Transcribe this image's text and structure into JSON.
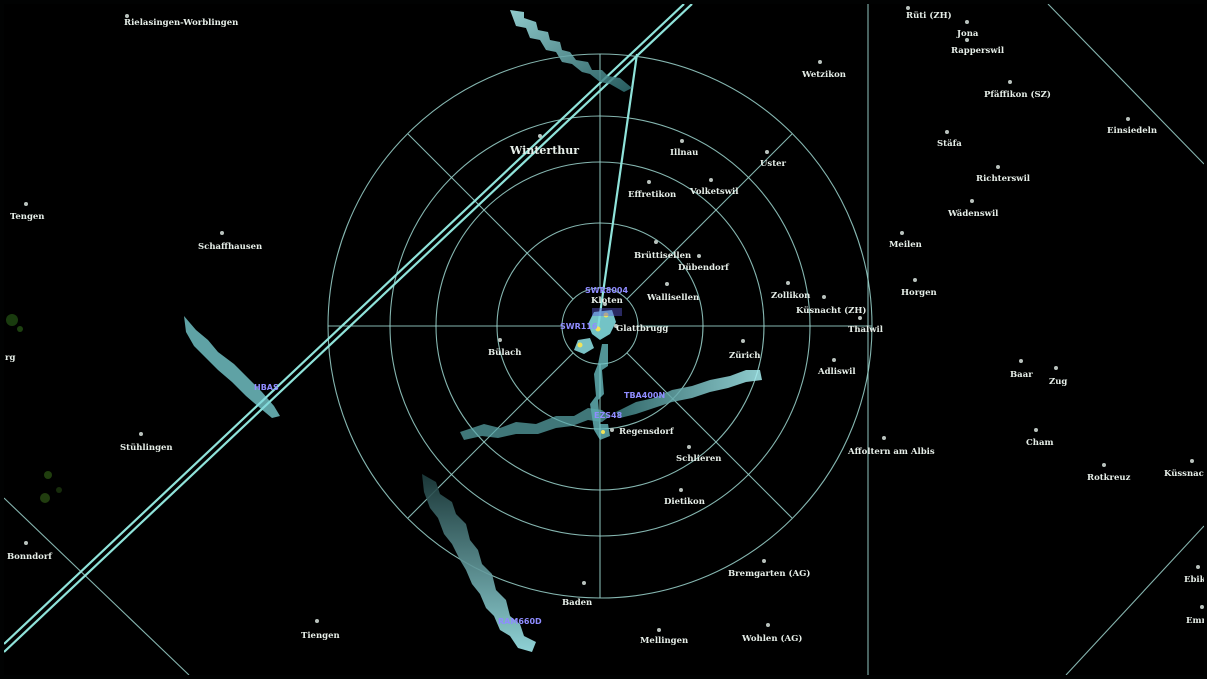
{
  "colors": {
    "background": "#000000",
    "ring": "#9cd6cf",
    "route": "#8fe3da",
    "trail": "#7fd8dc",
    "callsign": "#8f8cff",
    "label": "#e6eee8"
  },
  "places": [
    {
      "id": "rielasingen",
      "name": "Rielasingen-Worblingen"
    },
    {
      "id": "ruti",
      "name": "Rüti (ZH)"
    },
    {
      "id": "jona",
      "name": "Jona"
    },
    {
      "id": "rapperswil",
      "name": "Rapperswil"
    },
    {
      "id": "wetzikon",
      "name": "Wetzikon"
    },
    {
      "id": "pfaffikon",
      "name": "Pfäffikon (SZ)"
    },
    {
      "id": "einsiedeln",
      "name": "Einsiedeln"
    },
    {
      "id": "stafa",
      "name": "Stäfa"
    },
    {
      "id": "winterthur",
      "name": "Winterthur"
    },
    {
      "id": "illnau",
      "name": "Illnau"
    },
    {
      "id": "uster",
      "name": "Uster"
    },
    {
      "id": "richterswil",
      "name": "Richterswil"
    },
    {
      "id": "effretikon",
      "name": "Effretikon"
    },
    {
      "id": "volketswil",
      "name": "Volketswil"
    },
    {
      "id": "wadenswil",
      "name": "Wädenswil"
    },
    {
      "id": "tengen",
      "name": "Tengen"
    },
    {
      "id": "schaffhausen",
      "name": "Schaffhausen"
    },
    {
      "id": "meilen",
      "name": "Meilen"
    },
    {
      "id": "bruttisellen",
      "name": "Brüttisellen"
    },
    {
      "id": "dubendorf",
      "name": "Dübendorf"
    },
    {
      "id": "horgen",
      "name": "Horgen"
    },
    {
      "id": "kloten",
      "name": "Kloten"
    },
    {
      "id": "wallisellen",
      "name": "Wallisellen"
    },
    {
      "id": "zollikon",
      "name": "Zollikon"
    },
    {
      "id": "kusnacht",
      "name": "Küsnacht (ZH)"
    },
    {
      "id": "thalwil",
      "name": "Thalwil"
    },
    {
      "id": "glattbrugg",
      "name": "Glattbrugg"
    },
    {
      "id": "bulach",
      "name": "Bülach"
    },
    {
      "id": "zurich",
      "name": "Zürich"
    },
    {
      "id": "adliswil",
      "name": "Adliswil"
    },
    {
      "id": "baar",
      "name": "Baar"
    },
    {
      "id": "zug",
      "name": "Zug"
    },
    {
      "id": "regensdorf",
      "name": "Regensdorf"
    },
    {
      "id": "stuhlingen",
      "name": "Stühlingen"
    },
    {
      "id": "affoltern",
      "name": "Affoltern am Albis"
    },
    {
      "id": "cham",
      "name": "Cham"
    },
    {
      "id": "schlieren",
      "name": "Schlieren"
    },
    {
      "id": "rotkreuz",
      "name": "Rotkreuz"
    },
    {
      "id": "kussnacht",
      "name": "Küssnacht"
    },
    {
      "id": "dietikon",
      "name": "Dietikon"
    },
    {
      "id": "bonndorf",
      "name": "Bonndorf"
    },
    {
      "id": "bremgarten",
      "name": "Bremgarten (AG)"
    },
    {
      "id": "ebikon",
      "name": "Ebikon"
    },
    {
      "id": "baden",
      "name": "Baden"
    },
    {
      "id": "emmen",
      "name": "Emm"
    },
    {
      "id": "tiengen",
      "name": "Tiengen"
    },
    {
      "id": "mellingen",
      "name": "Mellingen"
    },
    {
      "id": "wohlen",
      "name": "Wohlen (AG)"
    },
    {
      "id": "edge_left",
      "name": "rg"
    }
  ],
  "tracks": [
    {
      "id": "north",
      "callsign": "SWR8004"
    },
    {
      "id": "center",
      "callsign": "SWR116"
    },
    {
      "id": "east",
      "callsign": "TBA400N"
    },
    {
      "id": "south",
      "callsign": "EZS48"
    },
    {
      "id": "west",
      "callsign": "HBAS"
    },
    {
      "id": "southwest",
      "callsign": "RAM660D"
    }
  ]
}
